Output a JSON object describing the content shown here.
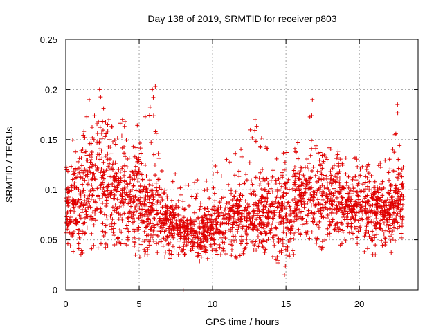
{
  "chart_data": {
    "type": "scatter",
    "title": "Day 138 of 2019, SRMTID for receiver p803",
    "xlabel": "GPS time / hours",
    "ylabel": "SRMTID / TECUs",
    "xlim": [
      0,
      24
    ],
    "ylim": [
      0,
      0.25
    ],
    "xticks": [
      0,
      5,
      10,
      15,
      20
    ],
    "xtick_labels": [
      "0",
      "5",
      "10",
      "15",
      "20"
    ],
    "yticks": [
      0,
      0.05,
      0.1,
      0.15,
      0.2,
      0.25
    ],
    "ytick_labels": [
      "0",
      "0.05",
      "0.1",
      "0.15",
      "0.2",
      "0.25"
    ],
    "grid": true,
    "marker": "plus",
    "color": "#e00000",
    "x_range_of_data": [
      0,
      23
    ],
    "envelope": [
      {
        "x": 0,
        "y_low": 0.04,
        "y_mid": 0.085,
        "y_high": 0.14
      },
      {
        "x": 1,
        "y_low": 0.03,
        "y_mid": 0.085,
        "y_high": 0.165
      },
      {
        "x": 2,
        "y_low": 0.03,
        "y_mid": 0.1,
        "y_high": 0.19
      },
      {
        "x": 2.3,
        "y_low": 0.04,
        "y_mid": 0.115,
        "y_high": 0.2
      },
      {
        "x": 3,
        "y_low": 0.04,
        "y_mid": 0.1,
        "y_high": 0.17
      },
      {
        "x": 4,
        "y_low": 0.03,
        "y_mid": 0.09,
        "y_high": 0.18
      },
      {
        "x": 5,
        "y_low": 0.03,
        "y_mid": 0.09,
        "y_high": 0.17
      },
      {
        "x": 6,
        "y_low": 0.035,
        "y_mid": 0.075,
        "y_high": 0.2
      },
      {
        "x": 7,
        "y_low": 0.03,
        "y_mid": 0.065,
        "y_high": 0.12
      },
      {
        "x": 8,
        "y_low": 0.03,
        "y_mid": 0.06,
        "y_high": 0.115
      },
      {
        "x": 9,
        "y_low": 0.025,
        "y_mid": 0.05,
        "y_high": 0.11
      },
      {
        "x": 10,
        "y_low": 0.03,
        "y_mid": 0.06,
        "y_high": 0.12
      },
      {
        "x": 11,
        "y_low": 0.03,
        "y_mid": 0.065,
        "y_high": 0.14
      },
      {
        "x": 12,
        "y_low": 0.03,
        "y_mid": 0.07,
        "y_high": 0.15
      },
      {
        "x": 13,
        "y_low": 0.035,
        "y_mid": 0.075,
        "y_high": 0.17
      },
      {
        "x": 14,
        "y_low": 0.035,
        "y_mid": 0.075,
        "y_high": 0.14
      },
      {
        "x": 15,
        "y_low": 0.015,
        "y_mid": 0.07,
        "y_high": 0.14
      },
      {
        "x": 16,
        "y_low": 0.05,
        "y_mid": 0.09,
        "y_high": 0.15
      },
      {
        "x": 17,
        "y_low": 0.04,
        "y_mid": 0.095,
        "y_high": 0.19
      },
      {
        "x": 18,
        "y_low": 0.04,
        "y_mid": 0.09,
        "y_high": 0.16
      },
      {
        "x": 19,
        "y_low": 0.04,
        "y_mid": 0.085,
        "y_high": 0.14
      },
      {
        "x": 20,
        "y_low": 0.035,
        "y_mid": 0.08,
        "y_high": 0.13
      },
      {
        "x": 21,
        "y_low": 0.035,
        "y_mid": 0.075,
        "y_high": 0.13
      },
      {
        "x": 22,
        "y_low": 0.035,
        "y_mid": 0.075,
        "y_high": 0.13
      },
      {
        "x": 22.7,
        "y_low": 0.04,
        "y_mid": 0.09,
        "y_high": 0.185
      },
      {
        "x": 23,
        "y_low": 0.05,
        "y_mid": 0.09,
        "y_high": 0.13
      }
    ],
    "outlier_points": [
      {
        "x": 8.0,
        "y": 0.0
      },
      {
        "x": 2.3,
        "y": 0.2
      },
      {
        "x": 6.1,
        "y": 0.203
      },
      {
        "x": 5.9,
        "y": 0.2
      },
      {
        "x": 16.8,
        "y": 0.19
      },
      {
        "x": 22.6,
        "y": 0.185
      },
      {
        "x": 1.6,
        "y": 0.19
      },
      {
        "x": 14.9,
        "y": 0.015
      },
      {
        "x": 12.9,
        "y": 0.17
      }
    ]
  }
}
